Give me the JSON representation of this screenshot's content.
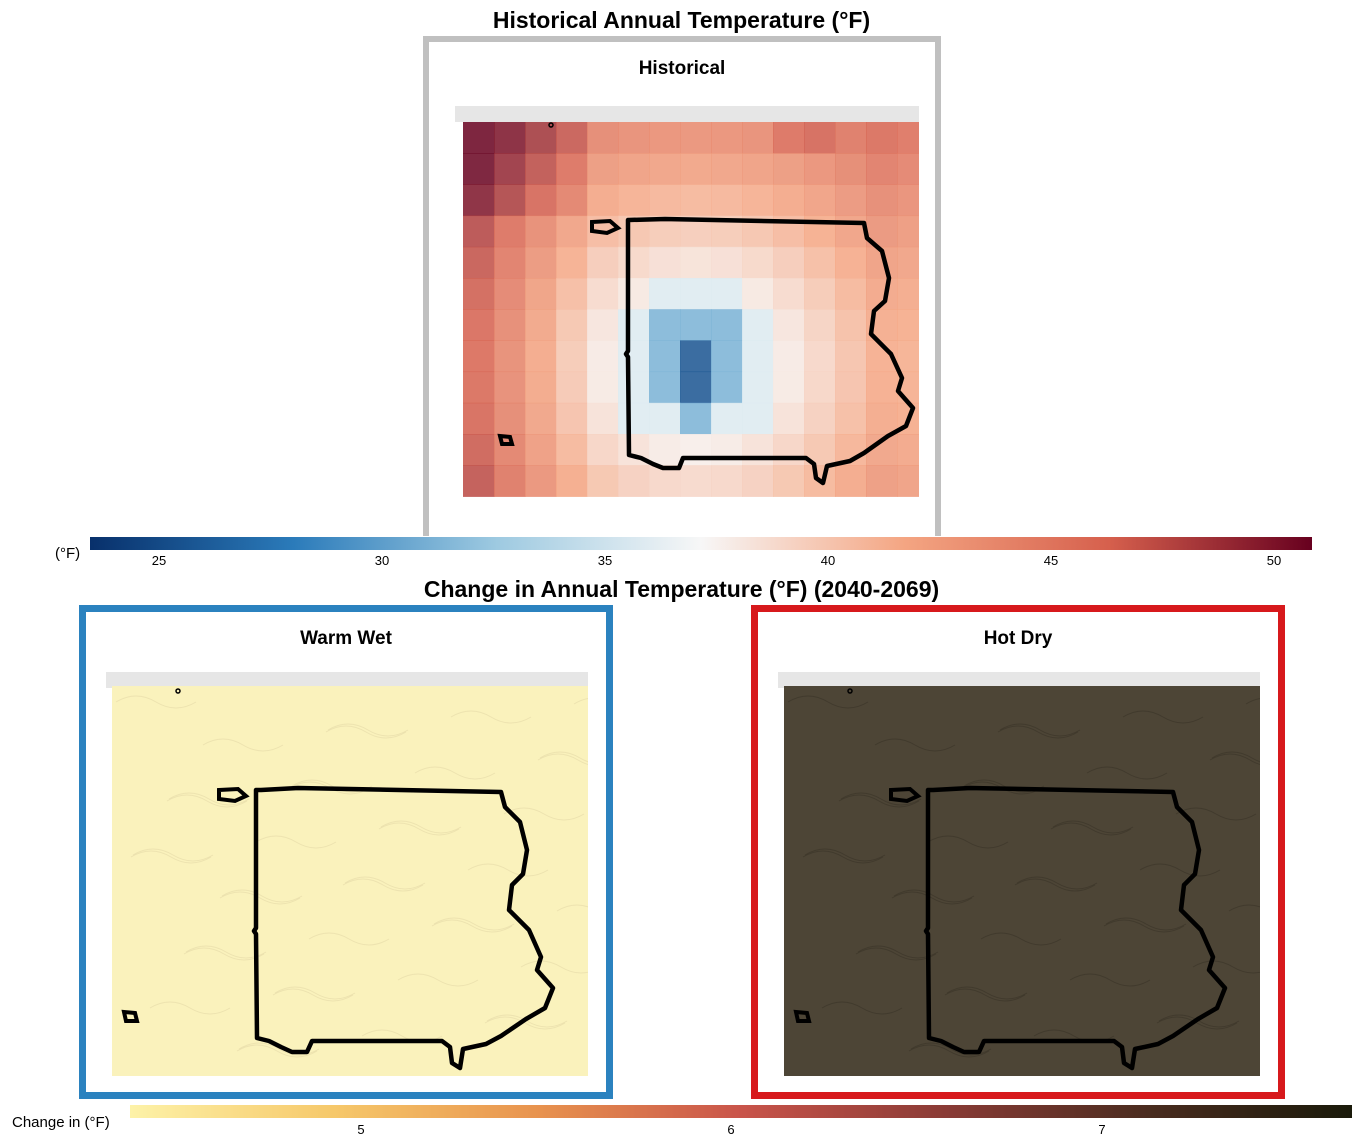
{
  "historical": {
    "title": "Historical Annual Temperature (°F)",
    "panel_label": "Historical",
    "legend": {
      "title": "(°F)",
      "ticks": [
        "25",
        "30",
        "35",
        "40",
        "45",
        "50"
      ],
      "colors": [
        "#08306b",
        "#2b7bba",
        "#9ecae1",
        "#f7f7f7",
        "#f4a582",
        "#d6604d",
        "#67001f"
      ]
    }
  },
  "change": {
    "title": "Change in Annual Temperature (°F) (2040-2069)",
    "panels": [
      {
        "label": "Warm Wet",
        "frame_color": "#2b82bf",
        "fill_color": "#faf2bc"
      },
      {
        "label": "Hot Dry",
        "frame_color": "#d7191c",
        "fill_color": "#4d4536"
      }
    ],
    "legend": {
      "title": "Change in (°F)",
      "ticks": [
        "5",
        "6",
        "7"
      ],
      "colors": [
        "#fdf2a8",
        "#f6c86a",
        "#e8934e",
        "#c9544a",
        "#8a3b36",
        "#4a2c1f",
        "#1a1a0a"
      ]
    }
  },
  "frame_color_historical": "#c0c0c0",
  "boundary_color": "#000000"
}
